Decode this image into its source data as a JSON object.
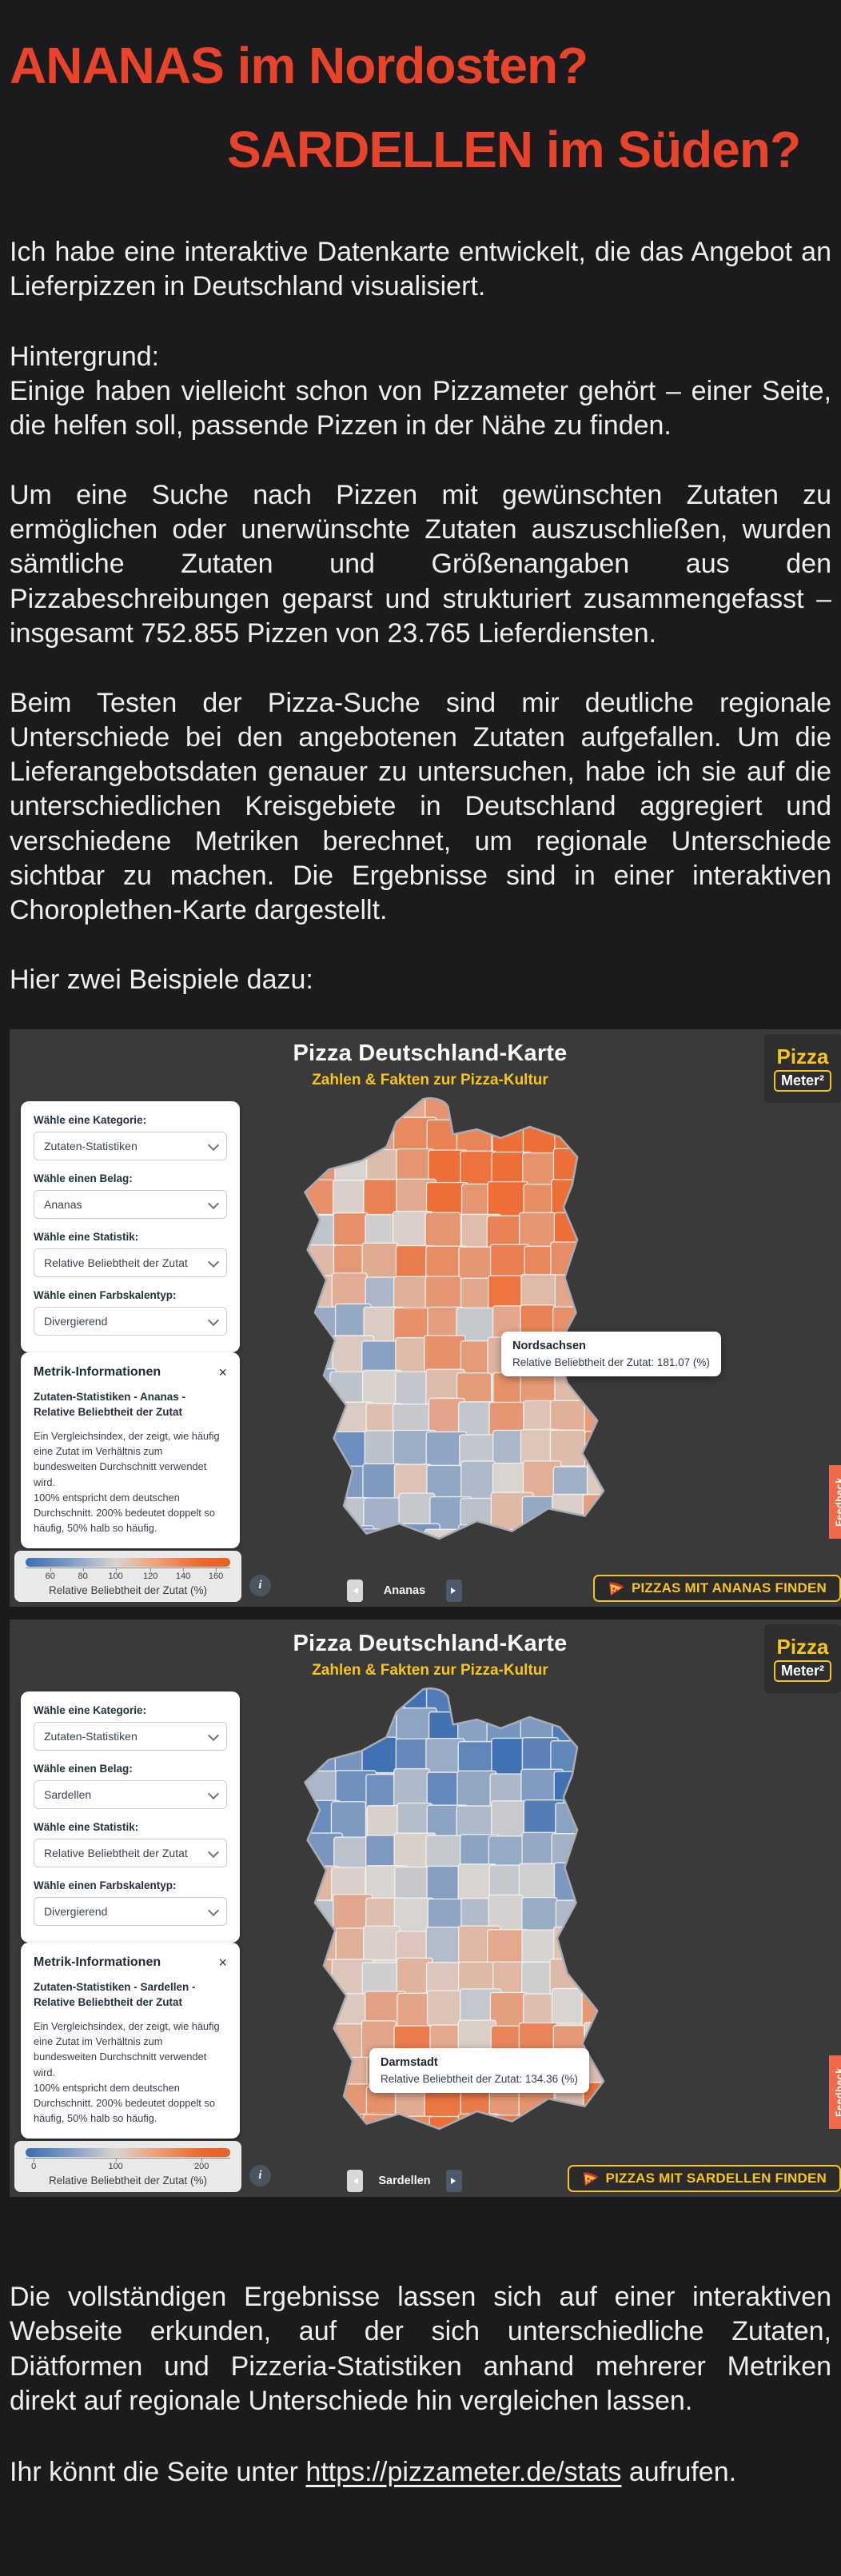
{
  "page": {
    "headline1": "ANANAS im Nordosten?",
    "headline2": "SARDELLEN im Süden?",
    "headline_color": "#e8432b",
    "paragraphs": [
      "Ich habe eine interaktive Datenkarte entwickelt, die das Angebot an Lieferpizzen in Deutschland visualisiert.",
      "Hintergrund:\nEinige haben vielleicht schon von Pizzameter gehört – einer Seite, die helfen soll, passende Pizzen in der Nähe zu finden.",
      "Um eine Suche nach Pizzen mit gewünschten Zutaten zu ermöglichen oder unerwünschte Zutaten auszuschließen, wurden sämtliche Zutaten und Größenangaben aus den Pizzabeschreibungen geparst und strukturiert zusammengefasst – insgesamt 752.855 Pizzen von 23.765 Lieferdiensten.",
      "Beim Testen der Pizza-Suche sind mir deutliche regionale Unterschiede bei den angebotenen Zutaten aufgefallen. Um die Lieferangebotsdaten genauer zu untersuchen, habe ich sie auf die unterschiedlichen Kreisgebiete in Deutschland aggregiert und verschiedene Metriken berechnet, um regionale Unterschiede sichtbar zu machen. Die Ergebnisse sind in einer interaktiven Choroplethen-Karte dargestellt.",
      "Hier zwei Beispiele dazu:"
    ],
    "outro": "Die vollständigen Ergebnisse lassen sich auf einer interaktiven Webseite erkunden, auf der sich unterschiedliche Zutaten, Diätformen und Pizzeria-Statistiken anhand mehrerer Metriken direkt auf regionale Unterschiede hin vergleichen lassen.",
    "link": {
      "prefix": "Ihr könnt die Seite unter ",
      "url": "https://pizzameter.de/stats",
      "suffix": " aufrufen."
    }
  },
  "app": {
    "title": "Pizza Deutschland-Karte",
    "subtitle": "Zahlen & Fakten zur Pizza-Kultur",
    "logo_top": "Pizza",
    "logo_bottom": "Meter²",
    "accent_yellow": "#f8c51c",
    "feedback_label": "Feedback",
    "info_button_label": "i",
    "control_labels": [
      "Wähle eine Kategorie:",
      "Wähle einen Belag:",
      "Wähle eine Statistik:",
      "Wähle einen Farbskalentyp:"
    ],
    "metric_title": "Metrik-Informationen",
    "metric_desc": "Ein Vergleichsindex, der zeigt, wie häufig eine Zutat im Verhältnis zum bundesweiten Durchschnitt verwendet wird.\n100% entspricht dem deutschen Durchschnitt. 200% bedeutet doppelt so häufig, 50% halb so häufig.",
    "palette": {
      "blue": "#3a6db3",
      "neutral": "#d9d5d1",
      "orange": "#ee6a30"
    }
  },
  "maps": [
    {
      "topping": "Ananas",
      "selects": [
        "Zutaten-Statistiken",
        "Ananas",
        "Relative Beliebtheit der Zutat",
        "Divergierend"
      ],
      "metric_subtitle": "Zutaten-Statistiken - Ananas - Relative Beliebtheit der Zutat",
      "tooltip": {
        "title": "Nordsachsen",
        "text": "Relative Beliebtheit der Zutat: 181.07 (%)"
      },
      "legend": {
        "label": "Relative Beliebtheit der Zutat (%)",
        "ticks": [
          {
            "label": "60",
            "pos": 12
          },
          {
            "label": "80",
            "pos": 28
          },
          {
            "label": "100",
            "pos": 44
          },
          {
            "label": "120",
            "pos": 61
          },
          {
            "label": "140",
            "pos": 77
          },
          {
            "label": "160",
            "pos": 93
          }
        ]
      },
      "cta": "PIZZAS MIT ANANAS FINDEN",
      "choropleth": {
        "pattern": "northeast-orange",
        "seed": 42,
        "base": 0.58,
        "wx": 0.52,
        "wy": -0.78,
        "noise": 0.5
      }
    },
    {
      "topping": "Sardellen",
      "selects": [
        "Zutaten-Statistiken",
        "Sardellen",
        "Relative Beliebtheit der Zutat",
        "Divergierend"
      ],
      "metric_subtitle": "Zutaten-Statistiken - Sardellen - Relative Beliebtheit der Zutat",
      "tooltip": {
        "title": "Darmstadt",
        "text": "Relative Beliebtheit der Zutat: 134.36 (%)"
      },
      "legend": {
        "label": "Relative Beliebtheit der Zutat (%)",
        "ticks": [
          {
            "label": "0",
            "pos": 4
          },
          {
            "label": "100",
            "pos": 44
          },
          {
            "label": "200",
            "pos": 86
          }
        ]
      },
      "cta": "PIZZAS MIT SARDELLEN FINDEN",
      "choropleth": {
        "pattern": "south-orange",
        "seed": 7,
        "base": 0.5,
        "wx": -0.12,
        "wy": 0.95,
        "noise": 0.45
      }
    }
  ]
}
